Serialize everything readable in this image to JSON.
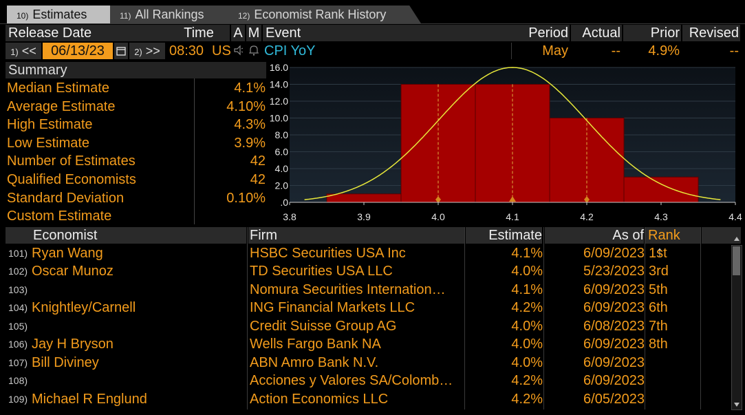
{
  "tabs": [
    {
      "num": "10)",
      "label": "Estimates"
    },
    {
      "num": "11)",
      "label": "All Rankings"
    },
    {
      "num": "12)",
      "label": "Economist Rank History"
    }
  ],
  "header": {
    "release_date": "Release Date",
    "time": "Time",
    "a": "A",
    "m": "M",
    "event": "Event",
    "period": "Period",
    "actual": "Actual",
    "prior": "Prior",
    "revised": "Revised"
  },
  "controls": {
    "prev_num": "1)",
    "prev": "<<",
    "date": "06/13/23",
    "next_num": "2)",
    "next": ">>",
    "time": "08:30",
    "region": "US",
    "event": "CPI YoY",
    "period": "May",
    "actual": "--",
    "prior": "4.9%",
    "revised": "--"
  },
  "summary": {
    "title": "Summary",
    "rows": [
      {
        "label": "Median Estimate",
        "value": "4.1%"
      },
      {
        "label": "Average Estimate",
        "value": "4.10%"
      },
      {
        "label": "High Estimate",
        "value": "4.3%"
      },
      {
        "label": "Low Estimate",
        "value": "3.9%"
      },
      {
        "label": "Number of Estimates",
        "value": "42"
      },
      {
        "label": "Qualified Economists",
        "value": "42"
      },
      {
        "label": "Standard Deviation",
        "value": "0.10%"
      },
      {
        "label": "Custom Estimate",
        "value": ""
      }
    ]
  },
  "chart_data": {
    "type": "bar",
    "categories": [
      3.9,
      4.0,
      4.1,
      4.2,
      4.3
    ],
    "values": [
      1,
      14,
      14,
      10,
      3
    ],
    "x_ticks": [
      "3.8",
      "3.9",
      "4.0",
      "4.1",
      "4.2",
      "4.3",
      "4.4"
    ],
    "y_ticks": [
      "16.0",
      "14.0",
      "12.0",
      "10.0",
      "8.0",
      "6.0",
      "4.0",
      "2.0",
      ".0"
    ],
    "xlim": [
      3.8,
      4.4
    ],
    "ylim": [
      0,
      16
    ],
    "markers": [
      4.0,
      4.1,
      4.2
    ],
    "curve": {
      "mean": 4.1,
      "stdev": 0.1,
      "peak": 16
    },
    "colors": {
      "bar": "#a50000",
      "curve": "#e8e83a",
      "marker": "#d4871f"
    }
  },
  "table": {
    "columns": {
      "economist": "Economist",
      "firm": "Firm",
      "estimate": "Estimate",
      "asof": "As of",
      "rank": "Rank",
      "sort_icon": "↑"
    },
    "rows": [
      {
        "idx": "101)",
        "name": "Ryan Wang",
        "firm": "HSBC Securities USA Inc",
        "estimate": "4.1%",
        "asof": "6/09/2023",
        "rank": "1st"
      },
      {
        "idx": "102)",
        "name": "Oscar Munoz",
        "firm": "TD Securities USA LLC",
        "estimate": "4.0%",
        "asof": "5/23/2023",
        "rank": "3rd"
      },
      {
        "idx": "103)",
        "name": "",
        "firm": "Nomura Securities Internation…",
        "estimate": "4.1%",
        "asof": "6/09/2023",
        "rank": "5th"
      },
      {
        "idx": "104)",
        "name": "Knightley/Carnell",
        "firm": "ING Financial Markets LLC",
        "estimate": "4.2%",
        "asof": "6/09/2023",
        "rank": "6th"
      },
      {
        "idx": "105)",
        "name": "",
        "firm": "Credit Suisse Group AG",
        "estimate": "4.0%",
        "asof": "6/08/2023",
        "rank": "7th"
      },
      {
        "idx": "106)",
        "name": "Jay H Bryson",
        "firm": "Wells Fargo Bank NA",
        "estimate": "4.0%",
        "asof": "6/09/2023",
        "rank": "8th"
      },
      {
        "idx": "107)",
        "name": "Bill Diviney",
        "firm": "ABN Amro Bank N.V.",
        "estimate": "4.0%",
        "asof": "6/09/2023",
        "rank": ""
      },
      {
        "idx": "108)",
        "name": "",
        "firm": "Acciones y Valores SA/Colomb…",
        "estimate": "4.2%",
        "asof": "6/09/2023",
        "rank": ""
      },
      {
        "idx": "109)",
        "name": "Michael R Englund",
        "firm": "Action Economics LLC",
        "estimate": "4.2%",
        "asof": "6/05/2023",
        "rank": ""
      }
    ]
  }
}
